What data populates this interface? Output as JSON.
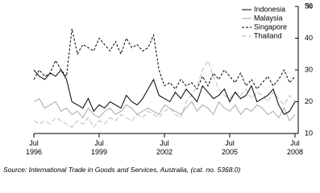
{
  "chart_data": {
    "type": "line",
    "y_label": "%",
    "source": "Source: International Trade in Goods and Services, Australia, (cat. no. 5368.0)",
    "x": [
      1996.5,
      1996.75,
      1997,
      1997.25,
      1997.5,
      1997.75,
      1998,
      1998.25,
      1998.5,
      1998.75,
      1999,
      1999.25,
      1999.5,
      1999.75,
      2000,
      2000.25,
      2000.5,
      2000.75,
      2001,
      2001.25,
      2001.5,
      2001.75,
      2002,
      2002.25,
      2002.5,
      2002.75,
      2003,
      2003.25,
      2003.5,
      2003.75,
      2004,
      2004.25,
      2004.5,
      2004.75,
      2005,
      2005.25,
      2005.5,
      2005.75,
      2006,
      2006.25,
      2006.5,
      2006.75,
      2007,
      2007.25,
      2007.5,
      2007.75,
      2008,
      2008.25,
      2008.5
    ],
    "xlim": [
      1996.5,
      2008.5
    ],
    "xticks": [
      {
        "value": 1996.5,
        "label": "Jul 1996"
      },
      {
        "value": 1999.5,
        "label": "Jul 1999"
      },
      {
        "value": 2002.5,
        "label": "Jul 2002"
      },
      {
        "value": 2005.5,
        "label": "Jul 2005"
      },
      {
        "value": 2008.5,
        "label": "Jul 2008"
      }
    ],
    "ylim": [
      10,
      50
    ],
    "yticks": [
      10,
      20,
      30,
      40,
      50
    ],
    "series": [
      {
        "name": "Indonesia",
        "color": "#000000",
        "dash": "none",
        "values": [
          30,
          28,
          27,
          29,
          28,
          30,
          27,
          20,
          19,
          18,
          21,
          17,
          19,
          18,
          20,
          19,
          18,
          22,
          20,
          19,
          21,
          24,
          27,
          22,
          21,
          20,
          23,
          21,
          24,
          22,
          20,
          25,
          23,
          21,
          22,
          24,
          20,
          23,
          21,
          22,
          25,
          20,
          21,
          22,
          24,
          19,
          16,
          17,
          20
        ]
      },
      {
        "name": "Malaysia",
        "color": "#a8a8a8",
        "dash": "none",
        "values": [
          20,
          21,
          18,
          19,
          20,
          17,
          18,
          16,
          17,
          15,
          18,
          16,
          15,
          17,
          18,
          16,
          17,
          19,
          18,
          16,
          17,
          18,
          17,
          16,
          19,
          18,
          17,
          16,
          18,
          20,
          17,
          19,
          18,
          16,
          20,
          18,
          17,
          19,
          16,
          18,
          17,
          19,
          18,
          16,
          17,
          15,
          18,
          14,
          16
        ]
      },
      {
        "name": "Singapore",
        "color": "#000000",
        "dash": "3,2",
        "values": [
          27,
          30,
          28,
          29,
          33,
          30,
          28,
          43,
          35,
          38,
          37,
          36,
          40,
          38,
          36,
          39,
          35,
          40,
          37,
          38,
          36,
          37,
          41,
          30,
          25,
          26,
          24,
          27,
          25,
          26,
          24,
          28,
          25,
          29,
          27,
          30,
          28,
          26,
          29,
          25,
          27,
          24,
          26,
          28,
          25,
          27,
          30,
          26,
          28
        ]
      },
      {
        "name": "Thailand",
        "color": "#bbbbbb",
        "dash": "6,3",
        "values": [
          14,
          13,
          14,
          13,
          15,
          14,
          13,
          12,
          14,
          13,
          15,
          12,
          14,
          13,
          15,
          14,
          16,
          15,
          14,
          16,
          15,
          17,
          16,
          15,
          17,
          18,
          16,
          15,
          20,
          22,
          25,
          30,
          33,
          28,
          24,
          22,
          21,
          23,
          22,
          24,
          21,
          23,
          22,
          20,
          23,
          21,
          19,
          22,
          20
        ]
      }
    ]
  }
}
